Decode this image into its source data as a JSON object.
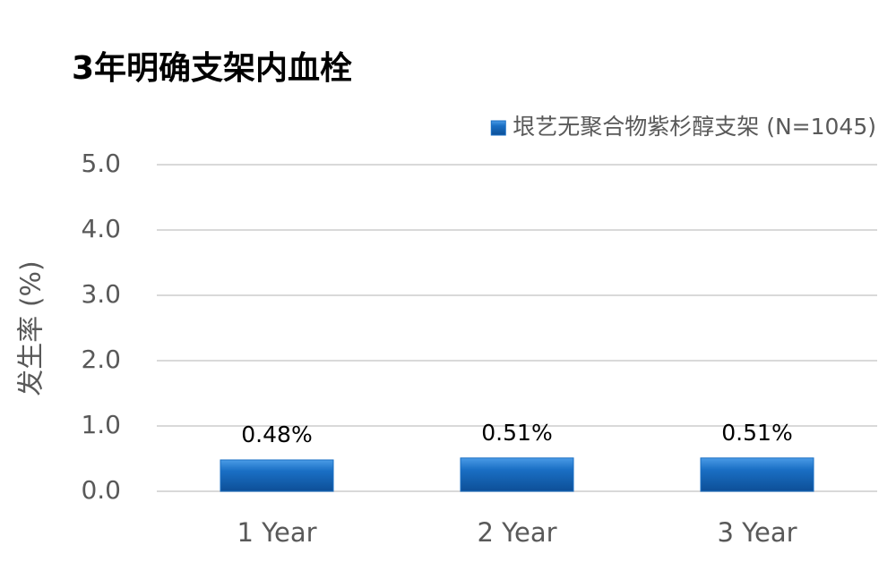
{
  "chart_data": {
    "type": "bar",
    "title": "3年明确支架内血栓",
    "y_label": "发生率 (%)",
    "categories": [
      "1 Year",
      "2 Year",
      "3 Year"
    ],
    "series": [
      {
        "name": "垠艺无聚合物紫杉醇支架 (N=1045)",
        "color": "#1a6fc4",
        "values": [
          0.48,
          0.51,
          0.51
        ],
        "value_labels": [
          "0.48%",
          "0.51%",
          "0.51%"
        ]
      }
    ],
    "ylim": [
      0,
      5
    ],
    "yticks": [
      {
        "value": 0,
        "label": "0.0"
      },
      {
        "value": 1,
        "label": "1.0"
      },
      {
        "value": 2,
        "label": "2.0"
      },
      {
        "value": 3,
        "label": "3.0"
      },
      {
        "value": 4,
        "label": "4.0"
      },
      {
        "value": 5,
        "label": "5.0"
      }
    ],
    "grid": true,
    "legend": "top-right"
  }
}
